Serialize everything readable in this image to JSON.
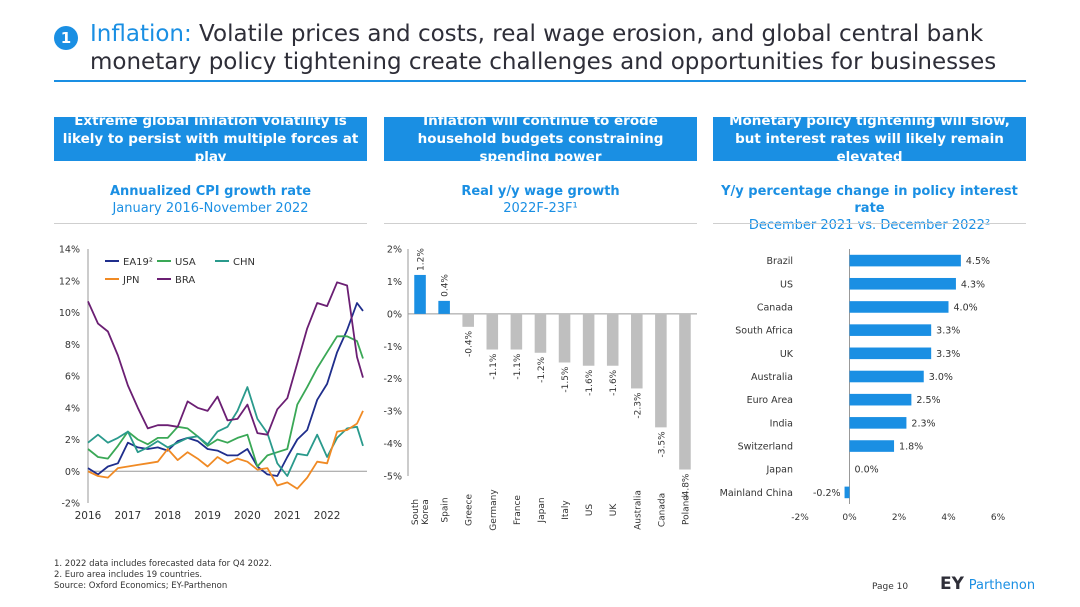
{
  "header": {
    "number": "1",
    "title_accent": "Inflation:",
    "title_line1": " Volatile prices and costs, real wage erosion, and global central bank",
    "title_line2": "monetary policy tightening create challenges and opportunities for businesses"
  },
  "panels": [
    {
      "box_text": "Extreme global inflation volatility is likely to persist with multiple forces at play",
      "chart_title": "Annualized CPI growth rate",
      "chart_subtitle": "January 2016-November 2022"
    },
    {
      "box_text": "Inflation will continue to erode household budgets constraining spending power",
      "chart_title": "Real y/y wage growth",
      "chart_subtitle": "2022F-23F¹"
    },
    {
      "box_text": "Monetary policy tightening will slow, but interest rates will likely remain elevated",
      "chart_title": "Y/y percentage change in policy interest rate",
      "chart_subtitle": "December 2021 vs. December 2022²"
    }
  ],
  "footnotes": {
    "note1": "1. 2022 data includes forecasted data for Q4 2022.",
    "note2": "2. Euro area includes 19 countries.",
    "source": "Source: Oxford Economics; EY-Parthenon"
  },
  "page_label": "Page 10",
  "logo": {
    "ey": "EY",
    "parthenon": "Parthenon"
  },
  "colors": {
    "accent": "#1a8fe3",
    "grey_bar": "#bfbfbf",
    "ea19": "#1f2e8c",
    "usa": "#3aa856",
    "chn": "#2a9a8c",
    "jpn": "#f08a24",
    "bra": "#6b1f73"
  },
  "chart_data": [
    {
      "type": "line",
      "ylim": [
        -2,
        14
      ],
      "yticks": [
        "14%",
        "12%",
        "10%",
        "8%",
        "6%",
        "4%",
        "2%",
        "0%",
        "-2%"
      ],
      "xticks": [
        "2016",
        "2017",
        "2018",
        "2019",
        "2020",
        "2021",
        "2022"
      ],
      "legend_position": "top-left",
      "series": [
        {
          "name": "EA19²",
          "color": "#1f2e8c",
          "x": [
            2016.0,
            2016.25,
            2016.5,
            2016.75,
            2017.0,
            2017.25,
            2017.5,
            2017.75,
            2018.0,
            2018.25,
            2018.5,
            2018.75,
            2019.0,
            2019.25,
            2019.5,
            2019.75,
            2020.0,
            2020.25,
            2020.5,
            2020.75,
            2021.0,
            2021.25,
            2021.5,
            2021.75,
            2022.0,
            2022.25,
            2022.5,
            2022.75,
            2022.9
          ],
          "y": [
            0.2,
            -0.2,
            0.3,
            0.5,
            1.8,
            1.5,
            1.4,
            1.5,
            1.3,
            1.9,
            2.1,
            1.9,
            1.4,
            1.3,
            1.0,
            1.0,
            1.4,
            0.3,
            -0.2,
            -0.3,
            0.9,
            2.0,
            2.6,
            4.5,
            5.5,
            7.5,
            8.9,
            10.6,
            10.1
          ]
        },
        {
          "name": "USA",
          "color": "#3aa856",
          "x": [
            2016.0,
            2016.25,
            2016.5,
            2016.75,
            2017.0,
            2017.25,
            2017.5,
            2017.75,
            2018.0,
            2018.25,
            2018.5,
            2018.75,
            2019.0,
            2019.25,
            2019.5,
            2019.75,
            2020.0,
            2020.25,
            2020.5,
            2020.75,
            2021.0,
            2021.25,
            2021.5,
            2021.75,
            2022.0,
            2022.25,
            2022.5,
            2022.75,
            2022.9
          ],
          "y": [
            1.4,
            0.9,
            0.8,
            1.6,
            2.5,
            2.0,
            1.7,
            2.1,
            2.1,
            2.8,
            2.7,
            2.2,
            1.6,
            2.0,
            1.8,
            2.1,
            2.3,
            0.3,
            1.0,
            1.2,
            1.4,
            4.2,
            5.3,
            6.5,
            7.5,
            8.5,
            8.5,
            8.2,
            7.1
          ]
        },
        {
          "name": "CHN",
          "color": "#2a9a8c",
          "x": [
            2016.0,
            2016.25,
            2016.5,
            2016.75,
            2017.0,
            2017.25,
            2017.5,
            2017.75,
            2018.0,
            2018.25,
            2018.5,
            2018.75,
            2019.0,
            2019.25,
            2019.5,
            2019.75,
            2020.0,
            2020.25,
            2020.5,
            2020.75,
            2021.0,
            2021.25,
            2021.5,
            2021.75,
            2022.0,
            2022.25,
            2022.5,
            2022.75,
            2022.9
          ],
          "y": [
            1.8,
            2.3,
            1.8,
            2.1,
            2.5,
            1.2,
            1.5,
            1.9,
            1.5,
            1.8,
            2.1,
            2.2,
            1.7,
            2.5,
            2.8,
            3.8,
            5.3,
            3.3,
            2.4,
            0.5,
            -0.3,
            1.1,
            1.0,
            2.3,
            0.9,
            2.1,
            2.7,
            2.8,
            1.6
          ]
        },
        {
          "name": "JPN",
          "color": "#f08a24",
          "x": [
            2016.0,
            2016.25,
            2016.5,
            2016.75,
            2017.0,
            2017.25,
            2017.5,
            2017.75,
            2018.0,
            2018.25,
            2018.5,
            2018.75,
            2019.0,
            2019.25,
            2019.5,
            2019.75,
            2020.0,
            2020.25,
            2020.5,
            2020.75,
            2021.0,
            2021.25,
            2021.5,
            2021.75,
            2022.0,
            2022.25,
            2022.5,
            2022.75,
            2022.9
          ],
          "y": [
            0.0,
            -0.3,
            -0.4,
            0.2,
            0.3,
            0.4,
            0.5,
            0.6,
            1.4,
            0.7,
            1.2,
            0.8,
            0.3,
            0.9,
            0.5,
            0.8,
            0.6,
            0.1,
            0.2,
            -0.9,
            -0.7,
            -1.1,
            -0.4,
            0.6,
            0.5,
            2.5,
            2.6,
            3.0,
            3.8
          ]
        },
        {
          "name": "BRA",
          "color": "#6b1f73",
          "x": [
            2016.0,
            2016.25,
            2016.5,
            2016.75,
            2017.0,
            2017.25,
            2017.5,
            2017.75,
            2018.0,
            2018.25,
            2018.5,
            2018.75,
            2019.0,
            2019.25,
            2019.5,
            2019.75,
            2020.0,
            2020.25,
            2020.5,
            2020.75,
            2021.0,
            2021.25,
            2021.5,
            2021.75,
            2022.0,
            2022.25,
            2022.5,
            2022.75,
            2022.9
          ],
          "y": [
            10.7,
            9.3,
            8.8,
            7.3,
            5.4,
            4.0,
            2.7,
            2.9,
            2.9,
            2.8,
            4.4,
            4.0,
            3.8,
            4.7,
            3.2,
            3.3,
            4.2,
            2.4,
            2.3,
            3.9,
            4.6,
            6.8,
            9.0,
            10.6,
            10.4,
            11.9,
            11.7,
            7.2,
            5.9
          ]
        }
      ]
    },
    {
      "type": "bar",
      "ylim": [
        -5,
        2
      ],
      "yticks": [
        "2%",
        "1%",
        "0%",
        "-1%",
        "-2%",
        "-3%",
        "-4%",
        "-5%"
      ],
      "categories": [
        "South Korea",
        "Spain",
        "Greece",
        "Germany",
        "France",
        "Japan",
        "Italy",
        "US",
        "UK",
        "Australia",
        "Canada",
        "Poland"
      ],
      "values": [
        1.2,
        0.4,
        -0.4,
        -1.1,
        -1.1,
        -1.2,
        -1.5,
        -1.6,
        -1.6,
        -2.3,
        -3.5,
        -4.8
      ],
      "value_labels": [
        "1.2%",
        "0.4%",
        "-0.4%",
        "-1.1%",
        "-1.1%",
        "-1.2%",
        "-1.5%",
        "-1.6%",
        "-1.6%",
        "-2.3%",
        "-3.5%",
        "-4.8%"
      ]
    },
    {
      "type": "bar",
      "orientation": "horizontal",
      "xlim": [
        -2,
        6
      ],
      "xticks": [
        "-2%",
        "0%",
        "2%",
        "4%",
        "6%"
      ],
      "categories": [
        "Brazil",
        "US",
        "Canada",
        "South Africa",
        "UK",
        "Australia",
        "Euro Area",
        "India",
        "Switzerland",
        "Japan",
        "Mainland China"
      ],
      "values": [
        4.5,
        4.3,
        4.0,
        3.3,
        3.3,
        3.0,
        2.5,
        2.3,
        1.8,
        0.0,
        -0.2
      ],
      "value_labels": [
        "4.5%",
        "4.3%",
        "4.0%",
        "3.3%",
        "3.3%",
        "3.0%",
        "2.5%",
        "2.3%",
        "1.8%",
        "0.0%",
        "-0.2%"
      ]
    }
  ]
}
